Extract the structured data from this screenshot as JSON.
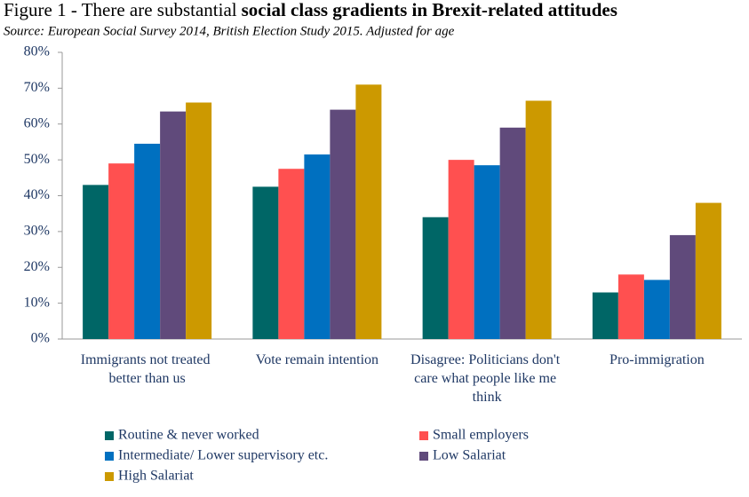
{
  "chart_data": {
    "type": "bar",
    "title_parts": [
      "Figure 1 - There are substantial",
      "social class gradients in Brexit-related attitudes"
    ],
    "subtitle": "Source:  European Social Survey 2014, British Election Study 2015.  Adjusted for age",
    "categories": [
      "Immigrants not treated better than us",
      "Vote remain intention",
      "Disagree: Politicians don't care what people like me think",
      "Pro-immigration"
    ],
    "series": [
      {
        "name": "Routine & never worked",
        "color": "#006666",
        "values": [
          43,
          42.5,
          34,
          13
        ]
      },
      {
        "name": "Small employers",
        "color": "#ff5050",
        "values": [
          49,
          47.5,
          50,
          18
        ]
      },
      {
        "name": "Intermediate/ Lower supervisory etc.",
        "color": "#0070c0",
        "values": [
          54.5,
          51.5,
          48.5,
          16.5
        ]
      },
      {
        "name": "Low Salariat",
        "color": "#604a7b",
        "values": [
          63.5,
          64,
          59,
          29
        ]
      },
      {
        "name": "High Salariat",
        "color": "#cc9900",
        "values": [
          66,
          71,
          66.5,
          38
        ]
      }
    ],
    "ylim": [
      0,
      80
    ],
    "yticks": [
      {
        "value": 0,
        "label": "0%"
      },
      {
        "value": 10,
        "label": "10%"
      },
      {
        "value": 20,
        "label": "20%"
      },
      {
        "value": 30,
        "label": "30%"
      },
      {
        "value": 40,
        "label": "40%"
      },
      {
        "value": 50,
        "label": "50%"
      },
      {
        "value": 60,
        "label": "60%"
      },
      {
        "value": 70,
        "label": "70%"
      },
      {
        "value": 80,
        "label": "80%"
      }
    ],
    "grid": false,
    "legend": "bottom"
  }
}
